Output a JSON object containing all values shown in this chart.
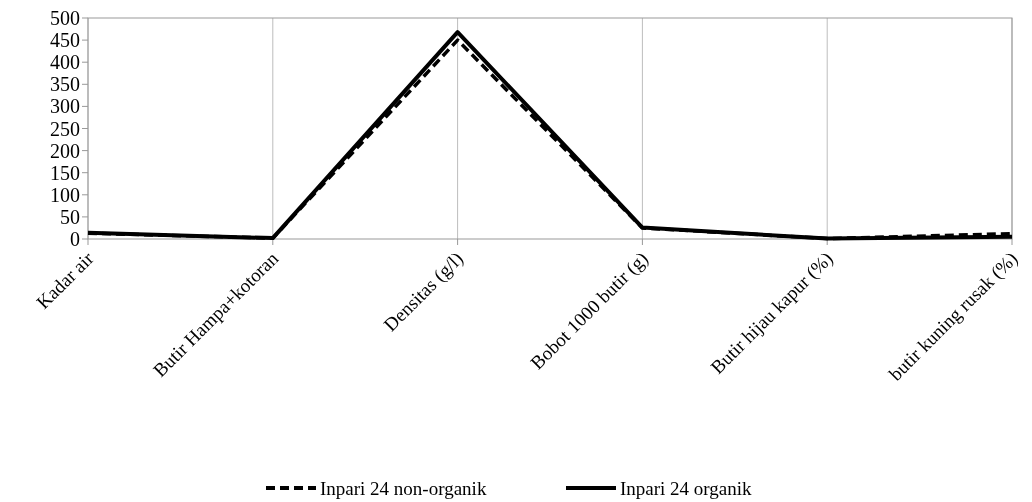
{
  "chart_data": {
    "type": "line",
    "categories": [
      "Kadar air",
      "Butir Hampa+kotoran",
      "Densitas (g/l)",
      "Bobot 1000 butir (g)",
      "Butir hijau kapur (%)",
      "butir kuning rusak (%)"
    ],
    "series": [
      {
        "name": "Inpari 24 non-organik",
        "color": "#000000",
        "line_style": "dashed",
        "values": [
          13,
          2,
          450,
          25,
          1,
          12
        ]
      },
      {
        "name": "Inpari 24 organik",
        "color": "#000000",
        "line_style": "solid",
        "values": [
          14,
          2,
          468,
          26,
          1,
          5
        ]
      }
    ],
    "ylim": [
      0,
      500
    ],
    "yticks": [
      0,
      50,
      100,
      150,
      200,
      250,
      300,
      350,
      400,
      450,
      500
    ],
    "grid": "x",
    "legend": "bottom"
  }
}
